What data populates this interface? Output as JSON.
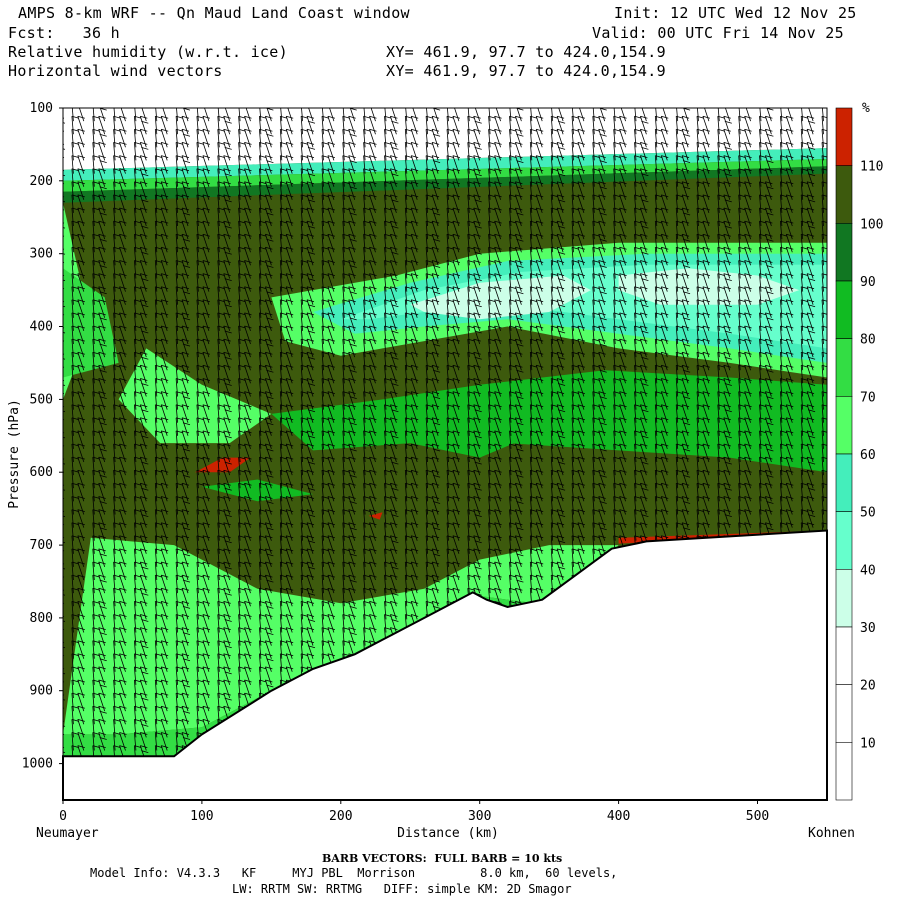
{
  "header": {
    "title": "AMPS 8-km WRF -- Qn Maud Land Coast window",
    "init": "Init: 12 UTC Wed 12 Nov 25",
    "fcst": "Fcst:   36 h",
    "valid": "Valid: 00 UTC Fri 14 Nov 25",
    "field1": "Relative humidity (w.r.t. ice)",
    "xy1": "XY= 461.9, 97.7 to 424.0,154.9",
    "field2": "Horizontal wind vectors",
    "xy2": "XY= 461.9, 97.7 to 424.0,154.9"
  },
  "footer": {
    "barb": "BARB VECTORS:  FULL BARB = 10 kts",
    "model_line1": "Model Info: V4.3.3   KF     MYJ PBL  Morrison         8.0 km,  60 levels,",
    "model_line2": "LW: RRTM SW: RRTMG   DIFF: simple KM: 2D Smagor"
  },
  "colors": {
    "c0": "#ffffff",
    "c30": "#ccffe8",
    "c40": "#66ffcc",
    "c50": "#44eebb",
    "c60": "#55ff66",
    "c70": "#33dd44",
    "c80": "#11bb22",
    "c90": "#117722",
    "c100": "#3d5a0d",
    "c110": "#cc2200"
  },
  "chart_data": {
    "type": "cross-section contour",
    "title": "Relative humidity (w.r.t. ice)",
    "xlabel": "Distance (km)",
    "ylabel": "Pressure (hPa)",
    "xlim": [
      0,
      550
    ],
    "ylim": [
      1050,
      100
    ],
    "x_ticks": [
      0,
      100,
      200,
      300,
      400,
      500
    ],
    "y_ticks": [
      100,
      200,
      300,
      400,
      500,
      600,
      700,
      800,
      900,
      1000
    ],
    "x_start_label": "Neumayer",
    "x_end_label": "Kohnen",
    "colorbar_unit": "%",
    "colorbar_levels": [
      10,
      20,
      30,
      40,
      50,
      60,
      70,
      80,
      90,
      100,
      110
    ],
    "terrain_surface": [
      [
        0,
        990
      ],
      [
        80,
        990
      ],
      [
        100,
        960
      ],
      [
        150,
        900
      ],
      [
        180,
        870
      ],
      [
        210,
        850
      ],
      [
        240,
        820
      ],
      [
        270,
        790
      ],
      [
        295,
        765
      ],
      [
        305,
        775
      ],
      [
        320,
        785
      ],
      [
        345,
        775
      ],
      [
        370,
        740
      ],
      [
        395,
        705
      ],
      [
        420,
        695
      ],
      [
        550,
        680
      ]
    ]
  }
}
